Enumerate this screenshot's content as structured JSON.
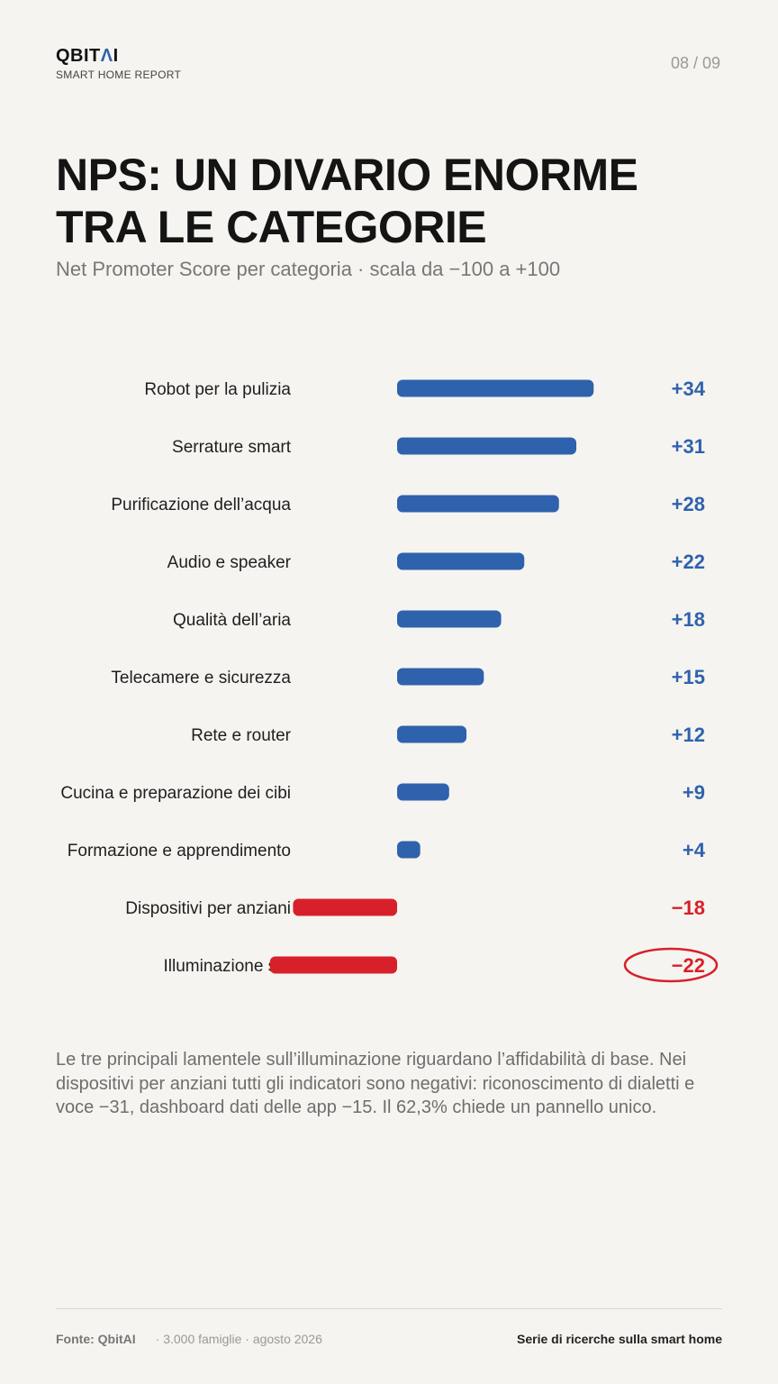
{
  "header": {
    "logo": "QBIT",
    "logo_mark": "Λ",
    "logo_tail": "I",
    "brand_sub": "SMART HOME REPORT",
    "page": "08 / 09"
  },
  "title_lines": [
    "NPS: UN DIVARIO ENORME",
    "TRA LE CATEGORIE"
  ],
  "subtitle": "Net Promoter Score per categoria · scala da −100 a +100",
  "colors": {
    "positive": "#2f62ad",
    "negative": "#d8202a",
    "background": "#f5f4f0"
  },
  "chart_data": {
    "type": "bar",
    "orientation": "horizontal",
    "categories": [
      "Robot per la pulizia",
      "Serrature smart",
      "Purificazione dell’acqua",
      "Audio e speaker",
      "Qualità dell’aria",
      "Telecamere e sicurezza",
      "Rete e router",
      "Cucina e preparazione dei cibi",
      "Formazione e apprendimento",
      "Dispositivi per anziani",
      "Illuminazione smart"
    ],
    "category_display": [
      "Robot per la pulizia",
      "Serrature smart",
      "Purificazione dell’acqua",
      "Audio e speaker",
      "Qualità dell’aria",
      "Telecamere e sicurezza",
      "Rete e router",
      "Cucina e preparazione dei cibi",
      "Formazione e apprendimento",
      "Dispositivi per anziani",
      "Illuminazione sm"
    ],
    "values": [
      34,
      31,
      28,
      22,
      18,
      15,
      12,
      9,
      4,
      -18,
      -22
    ],
    "value_labels": [
      "+34",
      "+31",
      "+28",
      "+22",
      "+18",
      "+15",
      "+12",
      "+9",
      "+4",
      "−18",
      "−22"
    ],
    "highlighted": [
      "Illuminazione smart"
    ],
    "xlim": [
      -100,
      100
    ],
    "grid": false,
    "legend": "none"
  },
  "note": "Le tre principali lamentele sull’illuminazione riguardano l’affidabilità di base. Nei dispositivi per anziani tutti gli indicatori sono negativi: riconoscimento di dialetti e voce −31, dashboard dati delle app −15. Il 62,3% chiede un pannello unico.",
  "footer": {
    "source": "Fonte: QbitAI",
    "meta": "· 3.000 famiglie · agosto 2026",
    "series": "Serie di ricerche sulla smart home"
  }
}
